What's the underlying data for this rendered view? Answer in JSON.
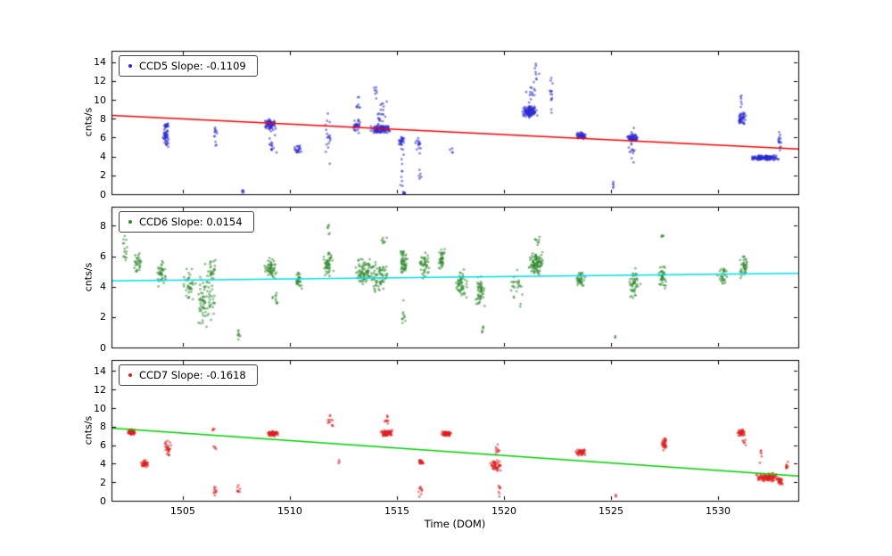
{
  "figure": {
    "xlabel": "Time (DOM)",
    "xlim": [
      1501.67,
      1533.75
    ],
    "x_ticks": [
      1505,
      1510,
      1515,
      1520,
      1525,
      1530
    ],
    "background": "#ffffff"
  },
  "chart_data": [
    {
      "type": "scatter",
      "name": "CCD5",
      "legend": "CCD5 Slope: -0.1109",
      "slope": -0.1109,
      "ylabel": "cnts/s",
      "ylim": [
        0,
        15.2
      ],
      "y_ticks": [
        0,
        2,
        4,
        6,
        8,
        10,
        12,
        14
      ],
      "point_color": "#2c2cd6",
      "fit_color": "#ff0000",
      "fit": {
        "x": [
          1501.67,
          1533.75
        ],
        "y": [
          8.35,
          4.79
        ]
      },
      "clusters": [
        [
          1504.2,
          0.15,
          6.1,
          1.4,
          45
        ],
        [
          1504.25,
          0.1,
          7.3,
          0.3,
          15
        ],
        [
          1506.5,
          0.1,
          6.5,
          2.2,
          12
        ],
        [
          1507.8,
          0.1,
          0.3,
          0.3,
          6
        ],
        [
          1509.1,
          0.3,
          7.4,
          0.6,
          70
        ],
        [
          1509.2,
          0.2,
          5.5,
          1.5,
          15
        ],
        [
          1510.4,
          0.2,
          4.8,
          0.5,
          22
        ],
        [
          1511.8,
          0.15,
          6.0,
          3.5,
          18
        ],
        [
          1513.1,
          0.2,
          7.2,
          0.8,
          30
        ],
        [
          1513.2,
          0.1,
          9.5,
          1.5,
          8
        ],
        [
          1514.2,
          0.5,
          6.9,
          0.5,
          110
        ],
        [
          1514.3,
          0.3,
          8.5,
          2.0,
          25
        ],
        [
          1514.0,
          0.1,
          11.0,
          0.7,
          6
        ],
        [
          1515.2,
          0.15,
          5.6,
          0.6,
          25
        ],
        [
          1515.25,
          0.1,
          3.0,
          2.8,
          12
        ],
        [
          1515.3,
          0.1,
          0.15,
          0.15,
          8
        ],
        [
          1516.0,
          0.15,
          5.2,
          1.0,
          15
        ],
        [
          1516.1,
          0.1,
          1.8,
          1.2,
          5
        ],
        [
          1517.5,
          0.3,
          4.6,
          0.3,
          4
        ],
        [
          1521.2,
          0.4,
          8.7,
          0.7,
          110
        ],
        [
          1521.3,
          0.3,
          10.5,
          2.0,
          20
        ],
        [
          1521.5,
          0.15,
          13.0,
          1.2,
          8
        ],
        [
          1522.2,
          0.12,
          10.5,
          2.3,
          14
        ],
        [
          1523.6,
          0.25,
          6.2,
          0.4,
          55
        ],
        [
          1525.1,
          0.05,
          1.0,
          0.7,
          5
        ],
        [
          1526.0,
          0.3,
          6.0,
          0.5,
          60
        ],
        [
          1526.0,
          0.2,
          5.0,
          2.2,
          18
        ],
        [
          1531.1,
          0.2,
          8.0,
          0.9,
          45
        ],
        [
          1531.1,
          0.1,
          9.8,
          0.8,
          6
        ],
        [
          1532.2,
          0.7,
          3.85,
          0.3,
          150
        ],
        [
          1532.9,
          0.1,
          5.5,
          1.5,
          15
        ]
      ]
    },
    {
      "type": "scatter",
      "name": "CCD6",
      "legend": "CCD6 Slope: 0.0154",
      "slope": 0.0154,
      "ylabel": "cnts/s",
      "ylim": [
        0,
        9.25
      ],
      "y_ticks": [
        0,
        2,
        4,
        6,
        8
      ],
      "point_color": "#2e8b2e",
      "fit_color": "#00e0ee",
      "fit": {
        "x": [
          1501.67,
          1533.75
        ],
        "y": [
          4.38,
          4.87
        ]
      },
      "clusters": [
        [
          1502.3,
          0.12,
          6.8,
          1.8,
          20
        ],
        [
          1502.9,
          0.2,
          5.5,
          0.9,
          30
        ],
        [
          1504.0,
          0.25,
          4.9,
          1.0,
          40
        ],
        [
          1505.3,
          0.3,
          4.0,
          1.5,
          35
        ],
        [
          1506.0,
          0.5,
          3.0,
          1.8,
          80
        ],
        [
          1506.3,
          0.3,
          5.0,
          1.0,
          25
        ],
        [
          1507.6,
          0.1,
          0.8,
          0.4,
          8
        ],
        [
          1509.1,
          0.3,
          5.2,
          0.8,
          55
        ],
        [
          1509.3,
          0.15,
          3.2,
          0.8,
          10
        ],
        [
          1510.4,
          0.2,
          4.5,
          0.7,
          30
        ],
        [
          1511.8,
          0.25,
          5.5,
          0.9,
          50
        ],
        [
          1511.8,
          0.1,
          7.5,
          0.7,
          6
        ],
        [
          1513.5,
          0.5,
          5.0,
          1.0,
          90
        ],
        [
          1514.2,
          0.4,
          4.5,
          1.1,
          60
        ],
        [
          1514.4,
          0.15,
          7.0,
          0.5,
          8
        ],
        [
          1515.3,
          0.2,
          5.6,
          0.9,
          55
        ],
        [
          1515.3,
          0.1,
          2.0,
          1.3,
          10
        ],
        [
          1516.3,
          0.25,
          5.4,
          0.9,
          45
        ],
        [
          1517.1,
          0.15,
          5.8,
          0.7,
          40
        ],
        [
          1518.0,
          0.3,
          4.2,
          1.2,
          55
        ],
        [
          1518.9,
          0.25,
          3.6,
          1.2,
          50
        ],
        [
          1519.0,
          0.1,
          1.3,
          0.4,
          6
        ],
        [
          1520.6,
          0.3,
          3.8,
          1.8,
          25
        ],
        [
          1521.5,
          0.4,
          5.5,
          0.9,
          95
        ],
        [
          1521.6,
          0.2,
          7.0,
          0.5,
          8
        ],
        [
          1523.6,
          0.25,
          4.5,
          0.6,
          40
        ],
        [
          1525.2,
          0.05,
          0.7,
          0.2,
          3
        ],
        [
          1526.1,
          0.3,
          4.2,
          1.1,
          50
        ],
        [
          1527.4,
          0.2,
          4.6,
          0.9,
          40
        ],
        [
          1527.4,
          0.1,
          7.3,
          0.5,
          5
        ],
        [
          1530.2,
          0.25,
          4.7,
          0.7,
          30
        ],
        [
          1531.2,
          0.2,
          5.3,
          0.8,
          40
        ]
      ]
    },
    {
      "type": "scatter",
      "name": "CCD7",
      "legend": "CCD7 Slope: -0.1618",
      "slope": -0.1618,
      "ylabel": "cnts/s",
      "ylim": [
        0,
        15.2
      ],
      "y_ticks": [
        0,
        2,
        4,
        6,
        8,
        10,
        12,
        14
      ],
      "point_color": "#e02020",
      "fit_color": "#00d000",
      "fit": {
        "x": [
          1501.67,
          1533.75
        ],
        "y": [
          7.85,
          2.66
        ]
      },
      "clusters": [
        [
          1502.6,
          0.2,
          7.4,
          0.35,
          60
        ],
        [
          1503.2,
          0.2,
          4.0,
          0.5,
          40
        ],
        [
          1504.3,
          0.2,
          5.6,
          1.0,
          30
        ],
        [
          1506.4,
          0.1,
          7.7,
          0.3,
          4
        ],
        [
          1506.5,
          0.08,
          5.6,
          0.4,
          4
        ],
        [
          1506.5,
          0.1,
          0.9,
          0.8,
          10
        ],
        [
          1507.6,
          0.1,
          1.0,
          0.7,
          8
        ],
        [
          1509.2,
          0.3,
          7.25,
          0.3,
          80
        ],
        [
          1511.9,
          0.15,
          8.7,
          0.9,
          12
        ],
        [
          1512.3,
          0.05,
          4.2,
          0.3,
          3
        ],
        [
          1514.5,
          0.3,
          7.3,
          0.35,
          80
        ],
        [
          1514.5,
          0.15,
          8.8,
          0.8,
          10
        ],
        [
          1516.1,
          0.15,
          4.15,
          0.25,
          30
        ],
        [
          1516.1,
          0.1,
          1.2,
          1.0,
          10
        ],
        [
          1517.3,
          0.25,
          7.2,
          0.3,
          70
        ],
        [
          1519.6,
          0.3,
          3.8,
          0.7,
          50
        ],
        [
          1519.7,
          0.15,
          5.5,
          0.8,
          10
        ],
        [
          1519.8,
          0.1,
          1.0,
          0.8,
          8
        ],
        [
          1523.6,
          0.25,
          5.2,
          0.35,
          50
        ],
        [
          1525.2,
          0.05,
          0.6,
          0.2,
          3
        ],
        [
          1527.5,
          0.15,
          6.1,
          0.7,
          40
        ],
        [
          1531.1,
          0.2,
          7.4,
          0.5,
          40
        ],
        [
          1531.2,
          0.1,
          6.3,
          0.4,
          6
        ],
        [
          1532.0,
          0.08,
          5.0,
          1.0,
          6
        ],
        [
          1532.3,
          0.6,
          2.5,
          0.5,
          120
        ],
        [
          1532.9,
          0.15,
          2.1,
          0.4,
          30
        ],
        [
          1533.2,
          0.1,
          3.8,
          0.8,
          10
        ]
      ]
    }
  ]
}
